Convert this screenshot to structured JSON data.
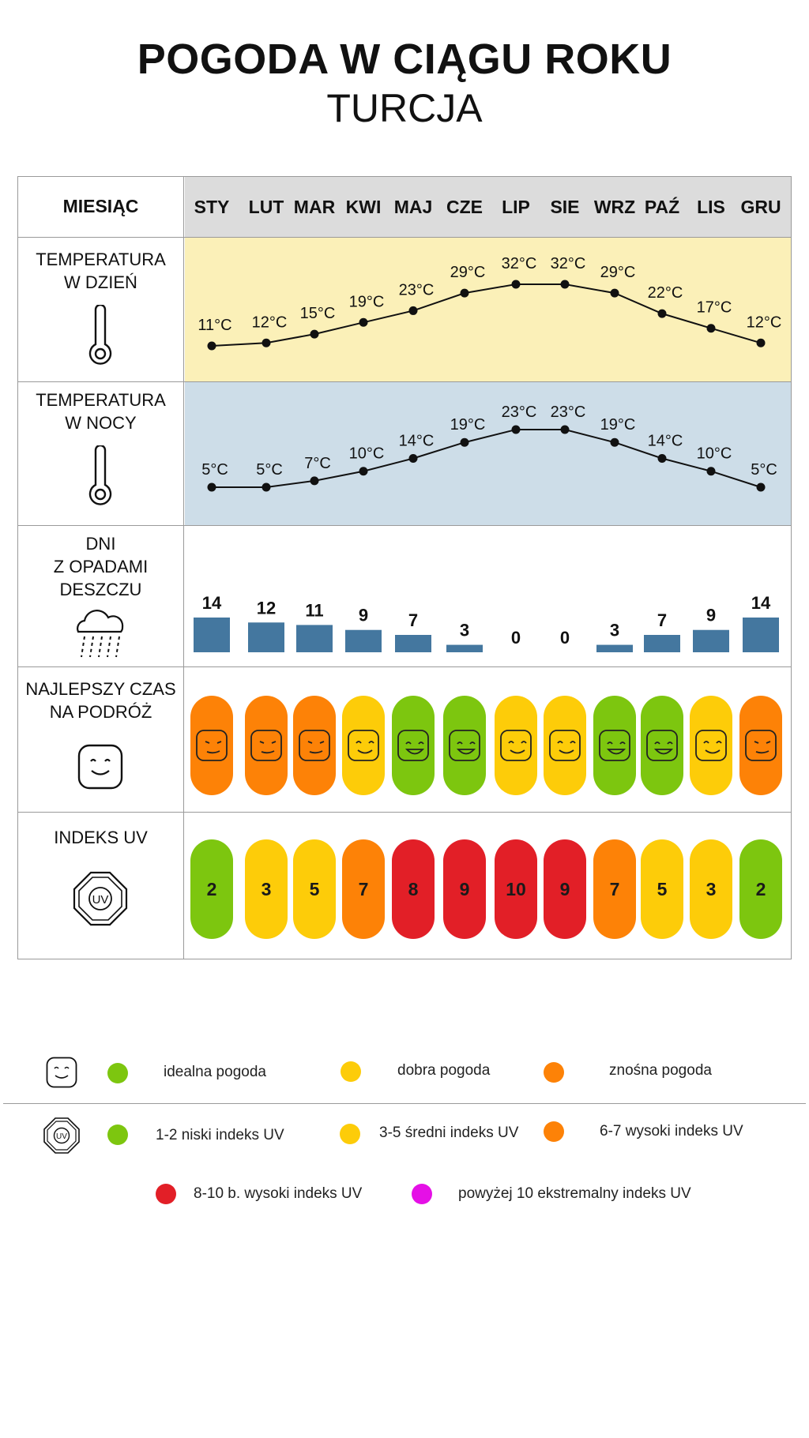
{
  "title": "POGODA W CIĄGU ROKU",
  "subtitle": "TURCJA",
  "header_label": "MIESIĄC",
  "months": [
    "STY",
    "LUT",
    "MAR",
    "KWI",
    "MAJ",
    "CZE",
    "LIP",
    "SIE",
    "WRZ",
    "PAŹ",
    "LIS",
    "GRU"
  ],
  "rows": {
    "day_temp": {
      "label": [
        "TEMPERATURA",
        "W DZIEŃ"
      ],
      "icon": "thermometer-icon",
      "bg": "#fbf0b8"
    },
    "night_temp": {
      "label": [
        "TEMPERATURA",
        "W NOCY"
      ],
      "icon": "thermometer-icon",
      "bg": "#cddde8"
    },
    "rain_days": {
      "label": [
        "DNI",
        "Z OPADAMI",
        "DESZCZU"
      ],
      "icon": "rain-cloud-icon"
    },
    "best_time": {
      "label": [
        "NAJLEPSZY CZAS",
        "NA PODRÓŻ"
      ],
      "icon": "smiley-icon"
    },
    "uv": {
      "label": [
        "INDEKS UV"
      ],
      "icon": "uv-sun-icon"
    }
  },
  "chart_data": {
    "type": "table",
    "categories": [
      "STY",
      "LUT",
      "MAR",
      "KWI",
      "MAJ",
      "CZE",
      "LIP",
      "SIE",
      "WRZ",
      "PAŹ",
      "LIS",
      "GRU"
    ],
    "series": [
      {
        "name": "TEMPERATURA W DZIEŃ",
        "type": "line",
        "unit": "°C",
        "values": [
          11,
          12,
          15,
          19,
          23,
          29,
          32,
          32,
          29,
          22,
          17,
          12
        ]
      },
      {
        "name": "TEMPERATURA W NOCY",
        "type": "line",
        "unit": "°C",
        "values": [
          5,
          5,
          7,
          10,
          14,
          19,
          23,
          23,
          19,
          14,
          10,
          5
        ]
      },
      {
        "name": "DNI Z OPADAMI DESZCZU",
        "type": "bar",
        "values": [
          14,
          12,
          11,
          9,
          7,
          3,
          0,
          0,
          3,
          7,
          9,
          14
        ]
      },
      {
        "name": "NAJLEPSZY CZAS NA PODRÓŻ",
        "type": "category",
        "values": [
          "znośna",
          "znośna",
          "znośna",
          "dobra",
          "idealna",
          "idealna",
          "dobra",
          "dobra",
          "idealna",
          "idealna",
          "dobra",
          "znośna"
        ]
      },
      {
        "name": "INDEKS UV",
        "type": "category",
        "values": [
          2,
          3,
          5,
          7,
          8,
          9,
          10,
          9,
          7,
          5,
          3,
          2
        ]
      }
    ]
  },
  "colors": {
    "idealna": "#7dc60f",
    "dobra": "#fdcc09",
    "znośna": "#fd8207",
    "uv_low": "#7dc60f",
    "uv_mid": "#fdcc09",
    "uv_high": "#fd8207",
    "uv_veryhigh": "#e21f27",
    "uv_extreme": "#e510e6",
    "bar": "#44779f",
    "header_bg": "#dcdcdc"
  },
  "legend": {
    "weather": [
      {
        "label": "idealna pogoda",
        "color": "#7dc60f"
      },
      {
        "label": "dobra pogoda",
        "color": "#fdcc09"
      },
      {
        "label": "znośna pogoda",
        "color": "#fd8207"
      }
    ],
    "uv": [
      {
        "label": "1-2 niski indeks UV",
        "color": "#7dc60f"
      },
      {
        "label": "3-5 średni indeks UV",
        "color": "#fdcc09"
      },
      {
        "label": "6-7 wysoki indeks UV",
        "color": "#fd8207"
      },
      {
        "label": "8-10 b. wysoki indeks UV",
        "color": "#e21f27"
      },
      {
        "label": "powyżej 10 ekstremalny indeks UV",
        "color": "#e510e6"
      }
    ]
  }
}
